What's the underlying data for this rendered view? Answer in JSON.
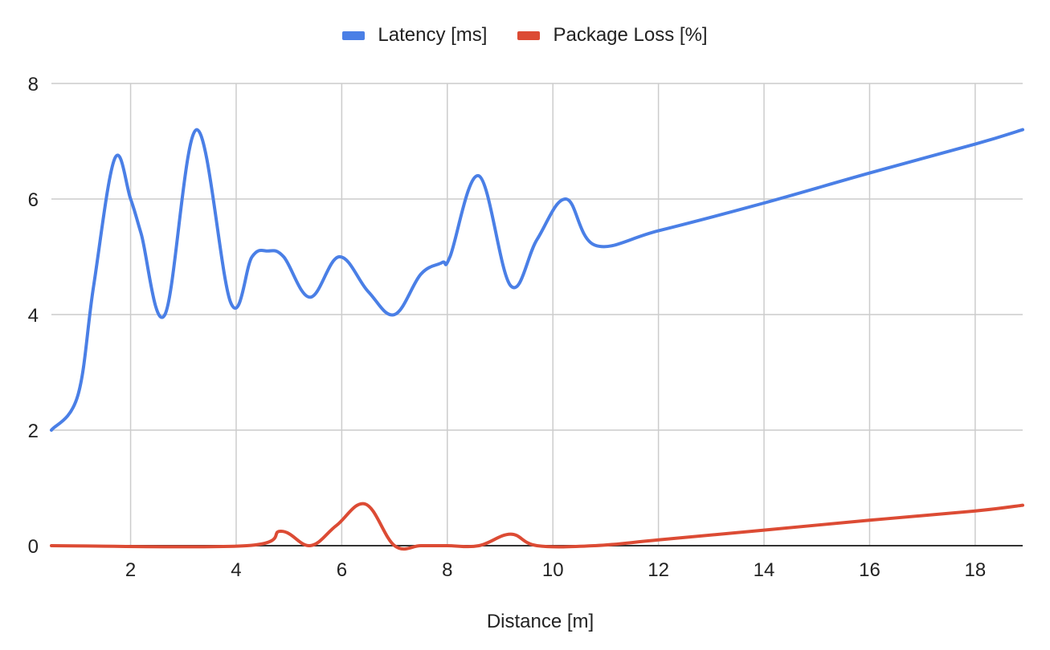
{
  "chart_data": {
    "type": "line",
    "title": "",
    "xlabel": "Distance [m]",
    "ylabel": "",
    "xlim": [
      0.5,
      18.9
    ],
    "ylim": [
      0,
      8
    ],
    "x_ticks": [
      2,
      4,
      6,
      8,
      10,
      12,
      14,
      16,
      18
    ],
    "y_ticks": [
      0,
      2,
      4,
      6,
      8
    ],
    "grid": true,
    "legend_position": "top-center",
    "series": [
      {
        "name": "Latency [ms]",
        "color": "#4a7fe6",
        "points": [
          [
            0.5,
            2.0
          ],
          [
            1.0,
            2.6
          ],
          [
            1.3,
            4.5
          ],
          [
            1.7,
            6.7
          ],
          [
            2.0,
            6.0
          ],
          [
            2.2,
            5.4
          ],
          [
            2.65,
            4.0
          ],
          [
            3.25,
            7.2
          ],
          [
            3.9,
            4.2
          ],
          [
            4.3,
            5.0
          ],
          [
            4.6,
            5.1
          ],
          [
            4.9,
            5.0
          ],
          [
            5.4,
            4.3
          ],
          [
            5.95,
            5.0
          ],
          [
            6.5,
            4.4
          ],
          [
            7.0,
            4.0
          ],
          [
            7.5,
            4.7
          ],
          [
            7.9,
            4.9
          ],
          [
            8.05,
            5.0
          ],
          [
            8.6,
            6.4
          ],
          [
            9.2,
            4.5
          ],
          [
            9.7,
            5.3
          ],
          [
            10.25,
            6.0
          ],
          [
            10.8,
            5.2
          ],
          [
            12.0,
            5.45
          ],
          [
            14.0,
            5.93
          ],
          [
            16.0,
            6.45
          ],
          [
            18.0,
            6.95
          ],
          [
            18.9,
            7.2
          ]
        ]
      },
      {
        "name": "Package Loss [%]",
        "color": "#dc4b34",
        "points": [
          [
            0.5,
            0.0
          ],
          [
            4.2,
            0.0
          ],
          [
            4.85,
            0.25
          ],
          [
            5.4,
            0.0
          ],
          [
            5.9,
            0.35
          ],
          [
            6.45,
            0.72
          ],
          [
            7.0,
            0.0
          ],
          [
            7.5,
            0.0
          ],
          [
            8.0,
            0.0
          ],
          [
            8.6,
            0.0
          ],
          [
            9.2,
            0.2
          ],
          [
            9.7,
            0.0
          ],
          [
            10.8,
            0.0
          ],
          [
            12.0,
            0.1
          ],
          [
            14.0,
            0.27
          ],
          [
            16.0,
            0.44
          ],
          [
            18.0,
            0.6
          ],
          [
            18.9,
            0.7
          ]
        ]
      }
    ]
  }
}
